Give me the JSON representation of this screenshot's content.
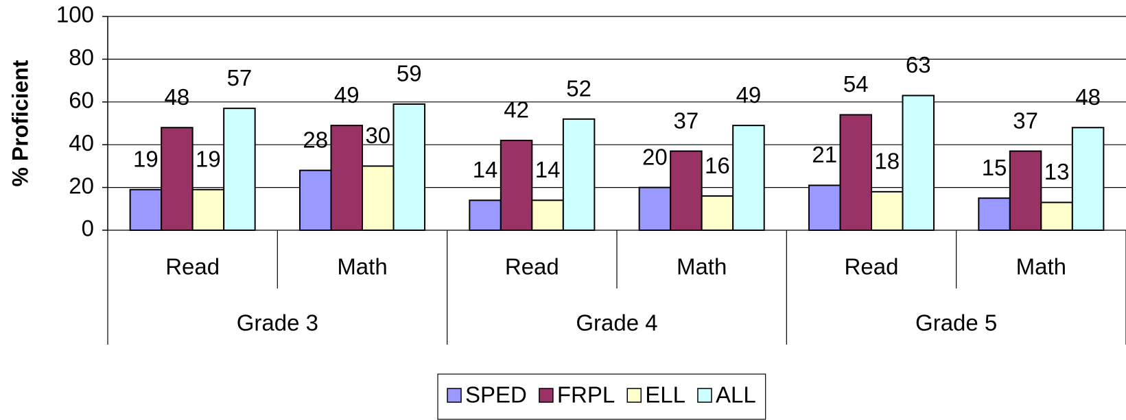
{
  "chart_data": {
    "type": "bar",
    "y_label": "% Proficient",
    "categories": [
      "Read",
      "Math",
      "Read",
      "Math",
      "Read",
      "Math"
    ],
    "groups": [
      "Grade 3",
      "Grade 4",
      "Grade 5"
    ],
    "series": [
      {
        "name": "SPED",
        "color": "#9999ff",
        "values": [
          19,
          28,
          14,
          20,
          21,
          15
        ]
      },
      {
        "name": "FRPL",
        "color": "#993366",
        "values": [
          48,
          49,
          42,
          37,
          54,
          37
        ]
      },
      {
        "name": "ELL",
        "color": "#ffffcc",
        "values": [
          19,
          30,
          14,
          16,
          18,
          13
        ]
      },
      {
        "name": "ALL",
        "color": "#ccffff",
        "values": [
          57,
          59,
          52,
          49,
          63,
          48
        ]
      }
    ],
    "ylim": [
      0,
      100
    ],
    "yticks": [
      0,
      20,
      40,
      60,
      80,
      100
    ],
    "grid": true,
    "legend": "bottom"
  }
}
